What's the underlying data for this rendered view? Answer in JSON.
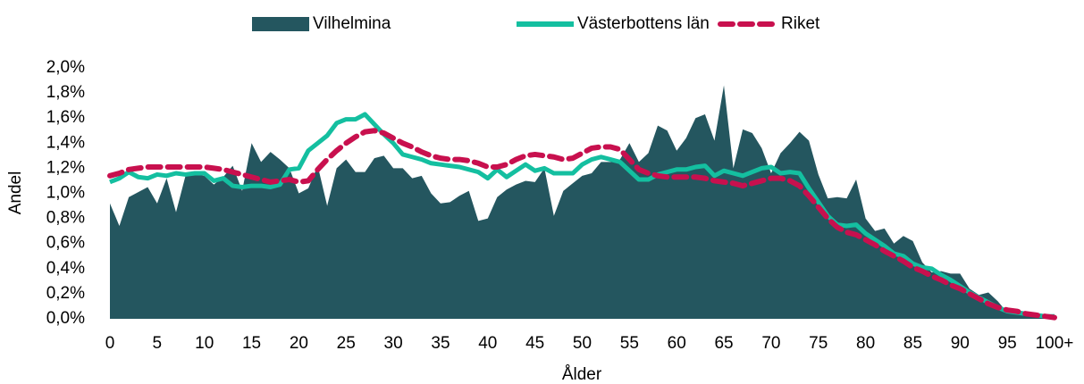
{
  "chart_data": {
    "type": "combo",
    "xlabel": "Ålder",
    "ylabel": "Andel",
    "categories": [
      "0",
      null,
      null,
      null,
      null,
      "5",
      null,
      null,
      null,
      null,
      "10",
      null,
      null,
      null,
      null,
      "15",
      null,
      null,
      null,
      null,
      "20",
      null,
      null,
      null,
      null,
      "25",
      null,
      null,
      null,
      null,
      "30",
      null,
      null,
      null,
      null,
      "35",
      null,
      null,
      null,
      null,
      "40",
      null,
      null,
      null,
      null,
      "45",
      null,
      null,
      null,
      null,
      "50",
      null,
      null,
      null,
      null,
      "55",
      null,
      null,
      null,
      null,
      "60",
      null,
      null,
      null,
      null,
      "65",
      null,
      null,
      null,
      null,
      "70",
      null,
      null,
      null,
      null,
      "75",
      null,
      null,
      null,
      null,
      "80",
      null,
      null,
      null,
      null,
      "85",
      null,
      null,
      null,
      null,
      "90",
      null,
      null,
      null,
      null,
      "95",
      null,
      null,
      null,
      null,
      "100+"
    ],
    "ylim": [
      0,
      2
    ],
    "yticks": [
      {
        "value": 0,
        "label": "0,0%"
      },
      {
        "value": 0.2,
        "label": "0,2%"
      },
      {
        "value": 0.4,
        "label": "0,4%"
      },
      {
        "value": 0.6,
        "label": "0,6%"
      },
      {
        "value": 0.8,
        "label": "0,8%"
      },
      {
        "value": 1.0,
        "label": "1,0%"
      },
      {
        "value": 1.2,
        "label": "1,2%"
      },
      {
        "value": 1.4,
        "label": "1,4%"
      },
      {
        "value": 1.6,
        "label": "1,6%"
      },
      {
        "value": 1.8,
        "label": "1,8%"
      },
      {
        "value": 2.0,
        "label": "2,0%"
      }
    ],
    "grid": false,
    "legend": "top",
    "series": [
      {
        "name": "Vilhelmina",
        "type": "area",
        "color": "#24565f",
        "values": [
          0.92,
          0.74,
          0.97,
          1.01,
          1.05,
          0.92,
          1.12,
          0.85,
          1.14,
          1.15,
          1.14,
          1.07,
          1.13,
          1.22,
          1.02,
          1.4,
          1.25,
          1.33,
          1.27,
          1.2,
          1.0,
          1.04,
          1.22,
          0.9,
          1.2,
          1.27,
          1.17,
          1.17,
          1.28,
          1.3,
          1.2,
          1.2,
          1.12,
          1.14,
          1.0,
          0.92,
          0.93,
          0.98,
          1.02,
          0.78,
          0.8,
          0.97,
          1.03,
          1.07,
          1.1,
          1.09,
          1.2,
          0.82,
          1.02,
          1.08,
          1.14,
          1.16,
          1.25,
          1.25,
          1.27,
          1.4,
          1.25,
          1.32,
          1.54,
          1.5,
          1.34,
          1.44,
          1.6,
          1.63,
          1.42,
          1.86,
          1.2,
          1.51,
          1.48,
          1.36,
          1.16,
          1.32,
          1.4,
          1.49,
          1.42,
          1.15,
          0.96,
          0.97,
          0.96,
          1.11,
          0.8,
          0.7,
          0.72,
          0.6,
          0.66,
          0.62,
          0.45,
          0.37,
          0.38,
          0.36,
          0.36,
          0.24,
          0.19,
          0.21,
          0.14,
          0.05,
          0.04,
          0.03,
          0.02,
          0.01,
          0.02
        ]
      },
      {
        "name": "Västerbottens län",
        "type": "line",
        "color": "#14bfa0",
        "values": [
          1.09,
          1.12,
          1.17,
          1.13,
          1.12,
          1.15,
          1.14,
          1.16,
          1.15,
          1.16,
          1.16,
          1.1,
          1.12,
          1.06,
          1.05,
          1.06,
          1.06,
          1.05,
          1.07,
          1.19,
          1.2,
          1.34,
          1.4,
          1.46,
          1.56,
          1.59,
          1.59,
          1.63,
          1.55,
          1.47,
          1.4,
          1.31,
          1.29,
          1.27,
          1.24,
          1.23,
          1.22,
          1.21,
          1.19,
          1.17,
          1.12,
          1.19,
          1.13,
          1.18,
          1.23,
          1.18,
          1.2,
          1.16,
          1.16,
          1.16,
          1.23,
          1.27,
          1.29,
          1.27,
          1.25,
          1.18,
          1.11,
          1.11,
          1.15,
          1.17,
          1.19,
          1.19,
          1.21,
          1.22,
          1.14,
          1.18,
          1.16,
          1.14,
          1.17,
          1.2,
          1.21,
          1.16,
          1.17,
          1.16,
          1.04,
          0.93,
          0.82,
          0.75,
          0.74,
          0.75,
          0.68,
          0.63,
          0.58,
          0.52,
          0.5,
          0.44,
          0.41,
          0.4,
          0.35,
          0.31,
          0.26,
          0.21,
          0.17,
          0.13,
          0.09,
          0.06,
          0.05,
          0.04,
          0.03,
          0.02,
          0.02
        ]
      },
      {
        "name": "Riket",
        "type": "line",
        "dashed": true,
        "color": "#c8104e",
        "values": [
          1.14,
          1.16,
          1.19,
          1.2,
          1.21,
          1.21,
          1.21,
          1.21,
          1.21,
          1.21,
          1.21,
          1.2,
          1.19,
          1.17,
          1.15,
          1.13,
          1.11,
          1.09,
          1.1,
          1.11,
          1.09,
          1.1,
          1.19,
          1.27,
          1.34,
          1.4,
          1.45,
          1.49,
          1.5,
          1.48,
          1.44,
          1.4,
          1.37,
          1.33,
          1.3,
          1.28,
          1.27,
          1.27,
          1.26,
          1.24,
          1.21,
          1.21,
          1.23,
          1.27,
          1.3,
          1.31,
          1.3,
          1.29,
          1.27,
          1.28,
          1.32,
          1.36,
          1.37,
          1.37,
          1.35,
          1.27,
          1.19,
          1.16,
          1.14,
          1.13,
          1.13,
          1.13,
          1.13,
          1.12,
          1.1,
          1.09,
          1.08,
          1.06,
          1.08,
          1.1,
          1.12,
          1.12,
          1.1,
          1.06,
          0.98,
          0.89,
          0.8,
          0.73,
          0.69,
          0.67,
          0.63,
          0.59,
          0.54,
          0.5,
          0.46,
          0.41,
          0.38,
          0.34,
          0.31,
          0.27,
          0.24,
          0.2,
          0.16,
          0.12,
          0.09,
          0.07,
          0.06,
          0.04,
          0.03,
          0.02,
          0.01
        ]
      }
    ]
  }
}
